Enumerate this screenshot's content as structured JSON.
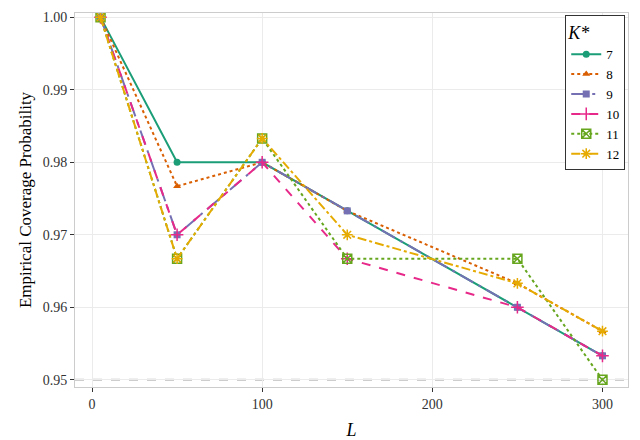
{
  "chart_data": {
    "type": "line",
    "x_label": "L",
    "y_label": "Empirical Coverage Probability",
    "legend_title": "K*",
    "x": [
      5,
      50,
      100,
      150,
      250,
      300
    ],
    "series": [
      {
        "name": "7",
        "color": "#1b9e77",
        "marker": "circle",
        "line_style": "solid",
        "values": [
          1.0,
          0.98,
          0.98,
          0.9733,
          0.96,
          0.9533
        ]
      },
      {
        "name": "8",
        "color": "#d95f02",
        "marker": "triangle",
        "line_style": "dot",
        "values": [
          1.0,
          0.9767,
          0.98,
          0.9733,
          0.9633,
          0.9567
        ]
      },
      {
        "name": "9",
        "color": "#7570b3",
        "marker": "square",
        "line_style": "longdashdot",
        "values": [
          1.0,
          0.97,
          0.98,
          0.9733,
          0.96,
          0.9533
        ]
      },
      {
        "name": "10",
        "color": "#e7298a",
        "marker": "cross",
        "line_style": "dash",
        "values": [
          1.0,
          0.97,
          0.98,
          0.9667,
          0.96,
          0.9533
        ]
      },
      {
        "name": "11",
        "color": "#66a61e",
        "marker": "squarex",
        "line_style": "dot",
        "values": [
          1.0,
          0.9667,
          0.9833,
          0.9667,
          0.9667,
          0.95
        ]
      },
      {
        "name": "12",
        "color": "#e6ab02",
        "marker": "asterisk",
        "line_style": "dashdot",
        "values": [
          1.0,
          0.9667,
          0.9833,
          0.97,
          0.9633,
          0.9567
        ]
      }
    ],
    "hline": 0.95,
    "xlim": [
      -10,
      315
    ],
    "xticks": [
      0,
      100,
      200,
      300
    ],
    "ylim": [
      0.949,
      1.0006
    ],
    "yticks": [
      0.95,
      0.96,
      0.97,
      0.98,
      0.99,
      {
        "value": 1,
        "label": "1.00"
      }
    ],
    "grid": true,
    "legend": "top right"
  }
}
